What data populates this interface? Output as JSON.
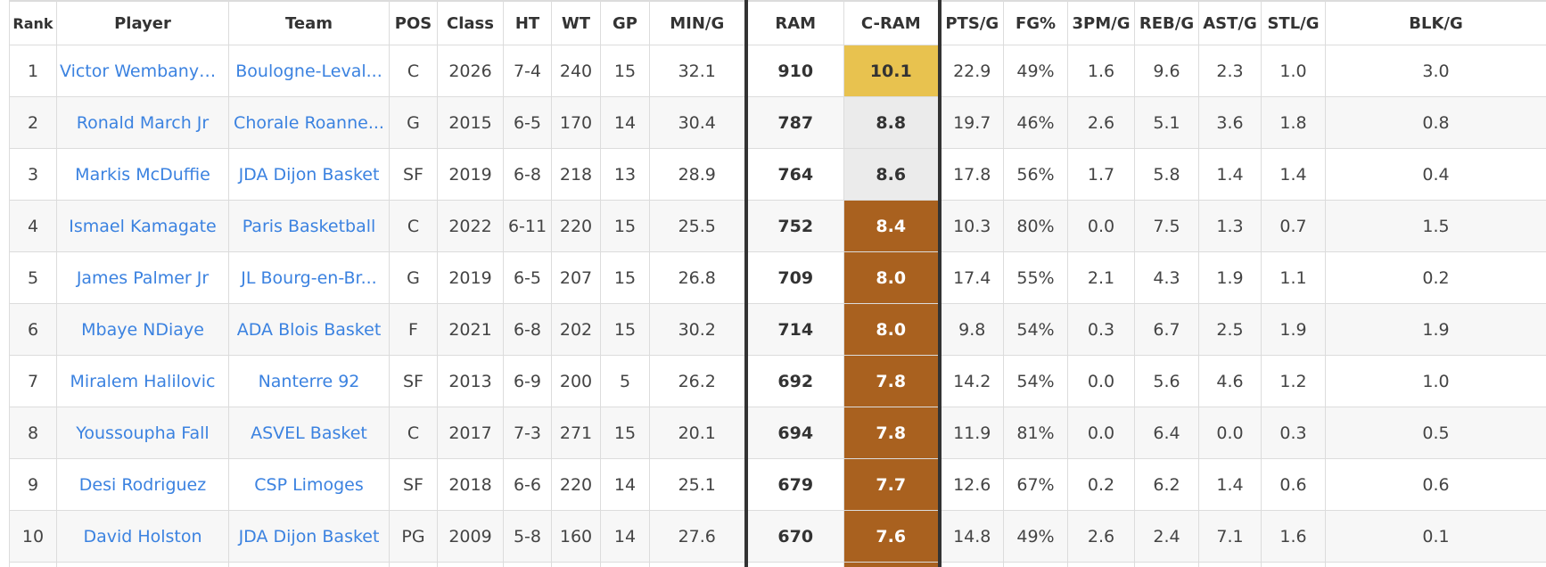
{
  "columns": [
    "Rank",
    "Player",
    "Team",
    "POS",
    "Class",
    "HT",
    "WT",
    "GP",
    "MIN/G",
    "RAM",
    "C-RAM",
    "PTS/G",
    "FG%",
    "3PM/G",
    "REB/G",
    "AST/G",
    "STL/G",
    "BLK/G"
  ],
  "colors": {
    "link": "#3b82e0",
    "cram_gold": "#e8c24f",
    "cram_silver": "#ebebeb",
    "cram_bronze": "#a9611f"
  },
  "rows": [
    {
      "rank": "1",
      "player": "Victor Wembanyama",
      "team": "Boulogne-Leval...",
      "pos": "C",
      "class": "2026",
      "ht": "7-4",
      "wt": "240",
      "gp": "15",
      "min": "32.1",
      "ram": "910",
      "cram": "10.1",
      "cram_tier": "gold",
      "pts": "22.9",
      "fg": "49%",
      "tpm": "1.6",
      "reb": "9.6",
      "ast": "2.3",
      "stl": "1.0",
      "blk": "3.0"
    },
    {
      "rank": "2",
      "player": "Ronald March Jr",
      "team": "Chorale Roanne...",
      "pos": "G",
      "class": "2015",
      "ht": "6-5",
      "wt": "170",
      "gp": "14",
      "min": "30.4",
      "ram": "787",
      "cram": "8.8",
      "cram_tier": "silver",
      "pts": "19.7",
      "fg": "46%",
      "tpm": "2.6",
      "reb": "5.1",
      "ast": "3.6",
      "stl": "1.8",
      "blk": "0.8"
    },
    {
      "rank": "3",
      "player": "Markis McDuffie",
      "team": "JDA Dijon Basket",
      "pos": "SF",
      "class": "2019",
      "ht": "6-8",
      "wt": "218",
      "gp": "13",
      "min": "28.9",
      "ram": "764",
      "cram": "8.6",
      "cram_tier": "silver",
      "pts": "17.8",
      "fg": "56%",
      "tpm": "1.7",
      "reb": "5.8",
      "ast": "1.4",
      "stl": "1.4",
      "blk": "0.4"
    },
    {
      "rank": "4",
      "player": "Ismael Kamagate",
      "team": "Paris Basketball",
      "pos": "C",
      "class": "2022",
      "ht": "6-11",
      "wt": "220",
      "gp": "15",
      "min": "25.5",
      "ram": "752",
      "cram": "8.4",
      "cram_tier": "bronze",
      "pts": "10.3",
      "fg": "80%",
      "tpm": "0.0",
      "reb": "7.5",
      "ast": "1.3",
      "stl": "0.7",
      "blk": "1.5"
    },
    {
      "rank": "5",
      "player": "James Palmer Jr",
      "team": "JL Bourg-en-Br...",
      "pos": "G",
      "class": "2019",
      "ht": "6-5",
      "wt": "207",
      "gp": "15",
      "min": "26.8",
      "ram": "709",
      "cram": "8.0",
      "cram_tier": "bronze",
      "pts": "17.4",
      "fg": "55%",
      "tpm": "2.1",
      "reb": "4.3",
      "ast": "1.9",
      "stl": "1.1",
      "blk": "0.2"
    },
    {
      "rank": "6",
      "player": "Mbaye NDiaye",
      "team": "ADA Blois Basket",
      "pos": "F",
      "class": "2021",
      "ht": "6-8",
      "wt": "202",
      "gp": "15",
      "min": "30.2",
      "ram": "714",
      "cram": "8.0",
      "cram_tier": "bronze",
      "pts": "9.8",
      "fg": "54%",
      "tpm": "0.3",
      "reb": "6.7",
      "ast": "2.5",
      "stl": "1.9",
      "blk": "1.9"
    },
    {
      "rank": "7",
      "player": "Miralem Halilovic",
      "team": "Nanterre 92",
      "pos": "SF",
      "class": "2013",
      "ht": "6-9",
      "wt": "200",
      "gp": "5",
      "min": "26.2",
      "ram": "692",
      "cram": "7.8",
      "cram_tier": "bronze",
      "pts": "14.2",
      "fg": "54%",
      "tpm": "0.0",
      "reb": "5.6",
      "ast": "4.6",
      "stl": "1.2",
      "blk": "1.0"
    },
    {
      "rank": "8",
      "player": "Youssoupha Fall",
      "team": "ASVEL Basket",
      "pos": "C",
      "class": "2017",
      "ht": "7-3",
      "wt": "271",
      "gp": "15",
      "min": "20.1",
      "ram": "694",
      "cram": "7.8",
      "cram_tier": "bronze",
      "pts": "11.9",
      "fg": "81%",
      "tpm": "0.0",
      "reb": "6.4",
      "ast": "0.0",
      "stl": "0.3",
      "blk": "0.5"
    },
    {
      "rank": "9",
      "player": "Desi Rodriguez",
      "team": "CSP Limoges",
      "pos": "SF",
      "class": "2018",
      "ht": "6-6",
      "wt": "220",
      "gp": "14",
      "min": "25.1",
      "ram": "679",
      "cram": "7.7",
      "cram_tier": "bronze",
      "pts": "12.6",
      "fg": "67%",
      "tpm": "0.2",
      "reb": "6.2",
      "ast": "1.4",
      "stl": "0.6",
      "blk": "0.6"
    },
    {
      "rank": "10",
      "player": "David Holston",
      "team": "JDA Dijon Basket",
      "pos": "PG",
      "class": "2009",
      "ht": "5-8",
      "wt": "160",
      "gp": "14",
      "min": "27.6",
      "ram": "670",
      "cram": "7.6",
      "cram_tier": "bronze",
      "pts": "14.8",
      "fg": "49%",
      "tpm": "2.6",
      "reb": "2.4",
      "ast": "7.1",
      "stl": "1.6",
      "blk": "0.1"
    }
  ]
}
